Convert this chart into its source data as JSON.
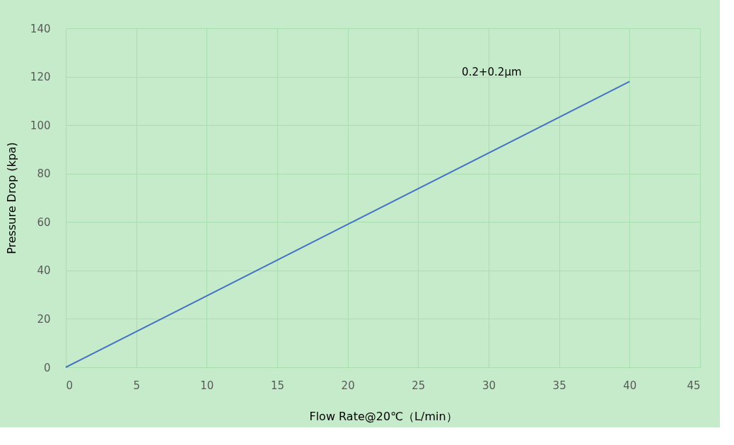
{
  "chart_data": {
    "type": "line",
    "xlabel": "Flow Rate@20℃（L/min）",
    "ylabel": "Pressure Drop (kpa)",
    "x": [
      0,
      20,
      40
    ],
    "series": [
      {
        "name": "0.2+0.2μm",
        "color": "#4472c4",
        "values": [
          0,
          59,
          118
        ]
      }
    ],
    "xlim": [
      0,
      45
    ],
    "xticks": [
      0,
      5,
      10,
      15,
      20,
      25,
      30,
      35,
      40,
      45
    ],
    "ylim": [
      0,
      140
    ],
    "yticks": [
      0,
      20,
      40,
      60,
      80,
      100,
      120,
      140
    ],
    "grid": true,
    "marker": "none",
    "line_style": "solid"
  }
}
